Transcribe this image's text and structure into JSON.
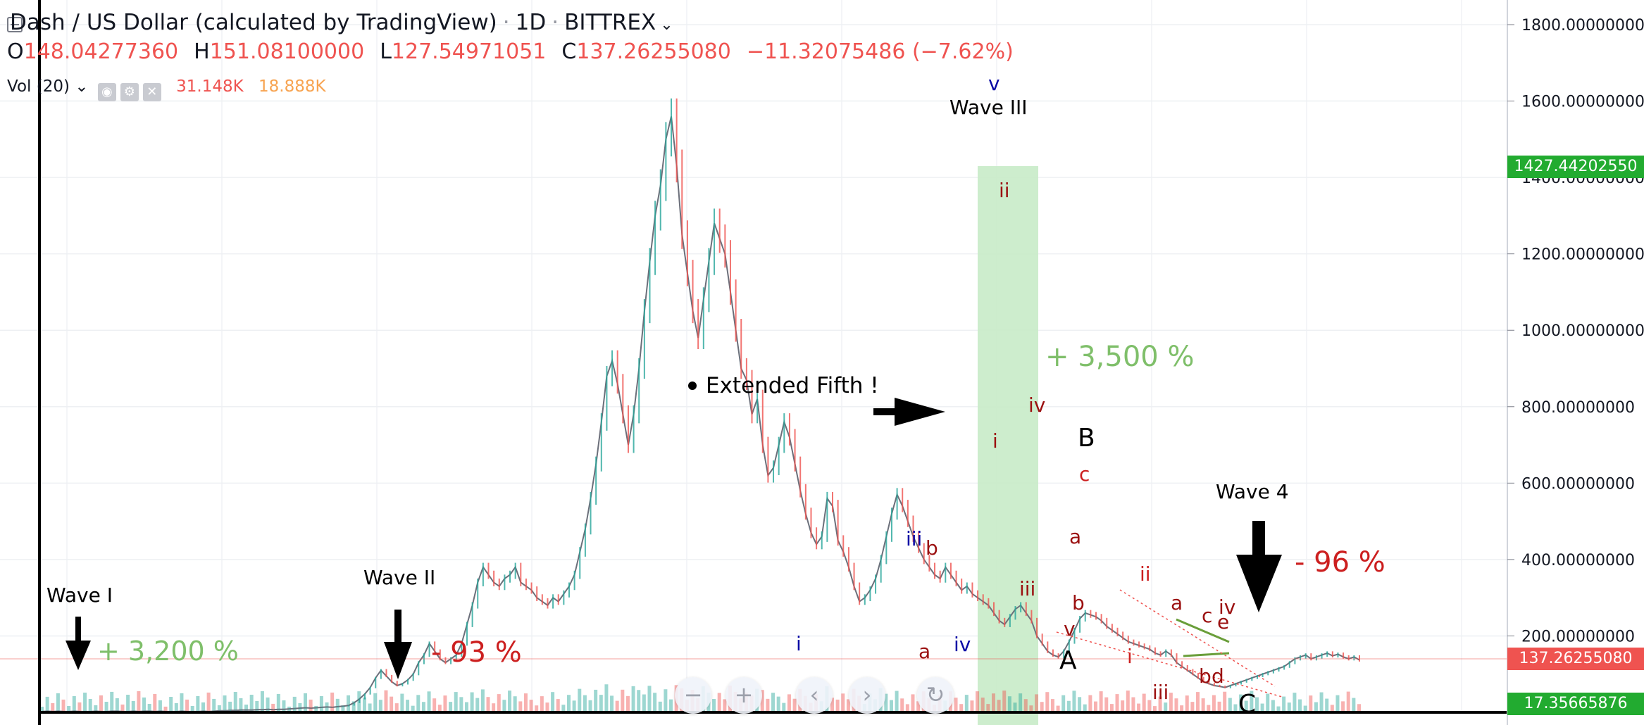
{
  "header": {
    "title": "Dash / US Dollar (calculated by TradingView)",
    "interval": "1D",
    "exchange": "BITTREX",
    "ohlc": {
      "open_label": "O",
      "open": "148.04277360",
      "high_label": "H",
      "high": "151.08100000",
      "low_label": "L",
      "low": "127.54971051",
      "close_label": "C",
      "close": "137.26255080",
      "change": "−11.32075486 (−7.62%)"
    }
  },
  "volume_indicator": {
    "label": "Vol (20)",
    "value1": "31.148K",
    "value2": "18.888K"
  },
  "colors": {
    "up": "#26a69a",
    "down": "#ef5350",
    "highlight": "#c8ebc8",
    "annotation_red": "#cc1f1f",
    "annotation_green": "#7fbf6a",
    "wave_blue": "#0a0aa5",
    "wave_darkred": "#9b1010"
  },
  "price_tags": {
    "marker1": "1427.44202550",
    "last_close": "137.26255080",
    "volume_last": "17.35665876"
  },
  "chart_data": {
    "type": "line",
    "title": "Dash / US Dollar (calculated by TradingView)",
    "ylim": [
      0,
      1800
    ],
    "y_ticks": [
      "200.00000000",
      "400.00000000",
      "600.00000000",
      "800.00000000",
      "1000.00000000",
      "1200.00000000",
      "1400.00000000",
      "1600.00000000",
      "1800.00000000"
    ],
    "grid": true,
    "series": [
      {
        "values": [
          2,
          3,
          2,
          3,
          2,
          2,
          3,
          2,
          2,
          2,
          3,
          2,
          2,
          3,
          3,
          2,
          2,
          3,
          2,
          3,
          3,
          2,
          3,
          2,
          2,
          2,
          3,
          2,
          2,
          2,
          3,
          2,
          3,
          4,
          4,
          5,
          5,
          6,
          6,
          6,
          7,
          7,
          8,
          7,
          8,
          8,
          9,
          10,
          11,
          12,
          11,
          12,
          13,
          14,
          13,
          15,
          16,
          18,
          25,
          35,
          48,
          65,
          90,
          110,
          95,
          80,
          70,
          75,
          85,
          100,
          130,
          150,
          180,
          160,
          140,
          130,
          140,
          150,
          180,
          230,
          280,
          340,
          380,
          360,
          340,
          330,
          350,
          360,
          380,
          340,
          330,
          320,
          300,
          290,
          280,
          300,
          290,
          310,
          330,
          360,
          420,
          480,
          560,
          650,
          760,
          880,
          920,
          860,
          780,
          700,
          780,
          900,
          1050,
          1180,
          1300,
          1380,
          1500,
          1560,
          1430,
          1250,
          1150,
          1050,
          980,
          1080,
          1180,
          1280,
          1240,
          1200,
          1100,
          1000,
          900,
          870,
          780,
          820,
          700,
          620,
          640,
          700,
          760,
          720,
          650,
          580,
          520,
          470,
          440,
          460,
          560,
          540,
          450,
          420,
          380,
          330,
          290,
          300,
          320,
          350,
          400,
          460,
          520,
          570,
          540,
          500,
          460,
          430,
          400,
          380,
          360,
          350,
          380,
          360,
          340,
          320,
          330,
          310,
          300,
          290,
          280,
          260,
          240,
          230,
          250,
          270,
          280,
          260,
          240,
          200,
          180,
          160,
          150,
          145,
          160,
          185,
          215,
          245,
          260,
          255,
          250,
          240,
          225,
          215,
          205,
          195,
          185,
          180,
          175,
          170,
          165,
          155,
          150,
          160,
          150,
          130,
          120,
          110,
          100,
          90,
          80,
          75,
          70,
          68,
          65,
          70,
          75,
          80,
          85,
          90,
          95,
          100,
          105,
          110,
          115,
          120,
          130,
          140,
          145,
          150,
          140,
          145,
          150,
          155,
          148,
          152,
          145,
          140,
          145,
          137
        ]
      }
    ],
    "annotations": [
      "Wave I",
      "+ 3,200 %",
      "Wave II",
      "- 93 %",
      "Wave III",
      "Extended Fifth !",
      "+ 3,500 %",
      "Wave 4",
      "- 96 %",
      "B",
      "A",
      "C",
      "i",
      "ii",
      "iii",
      "iv",
      "v",
      "a",
      "b",
      "c",
      "d",
      "e"
    ]
  }
}
